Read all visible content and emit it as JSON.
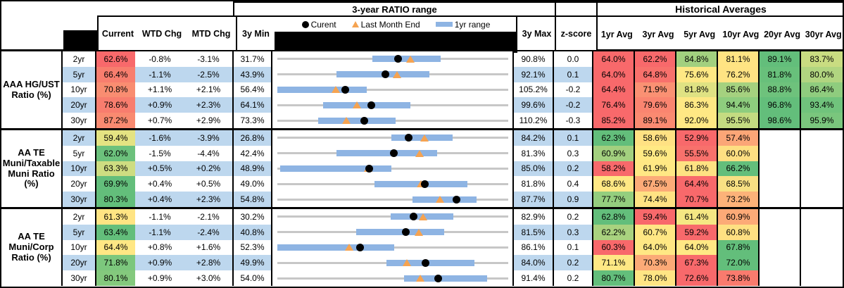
{
  "header": {
    "range_title": "3-year RATIO range",
    "hist_title": "Historical Averages",
    "legend": {
      "current": "Curent",
      "last_month": "Last Month End",
      "range_1yr": "1yr range"
    },
    "cols": {
      "current": "Current",
      "wtd": "WTD Chg",
      "mtd": "MTD Chg",
      "min3y": "3y Min",
      "max3y": "3y Max",
      "zscore": "z-score"
    },
    "avg_cols": [
      "1yr Avg",
      "3yr Avg",
      "5yr Avg",
      "10yr Avg",
      "20yr Avg",
      "30yr Avg"
    ]
  },
  "colors": {
    "stripe_blue": "#bdd7ee",
    "bar_blue": "#8eb4e3",
    "track_gray": "#c7c7c7",
    "triangle_orange": "#f5a351",
    "dot_black": "#000000",
    "heat_red": "#f8696b",
    "heat_yellow": "#ffeb84",
    "heat_green": "#63be7b"
  },
  "chart_data": {
    "type": "table",
    "title": "3-year RATIO range",
    "legend_entries": [
      "Current (black dot)",
      "Last Month End (orange triangle)",
      "1yr range (blue bar)"
    ],
    "note": "Each row plots Current, Last Month End and the 1yr range on a gray 3y min-max track; values in percent",
    "groups": [
      {
        "label": "AAA HG/UST Ratio (%)",
        "rows": [
          {
            "tenor": "2yr",
            "current": "62.6%",
            "cbg": "#f8696b",
            "wtd": "-0.8%",
            "mtd": "-3.1%",
            "min": "31.7%",
            "max": "90.8%",
            "z": "0.0",
            "chart": {
              "min": 31.7,
              "max": 90.8,
              "bar": [
                56.1,
                73.5
              ],
              "dot": 62.6,
              "tri": 65.7
            },
            "avgs": [
              {
                "v": "64.0%",
                "bg": "#f8696b"
              },
              {
                "v": "62.2%",
                "bg": "#f8696b"
              },
              {
                "v": "84.8%",
                "bg": "#a2d07f"
              },
              {
                "v": "81.1%",
                "bg": "#ffe483"
              },
              {
                "v": "89.1%",
                "bg": "#63be7b"
              },
              {
                "v": "83.7%",
                "bg": "#c9dc81"
              }
            ]
          },
          {
            "tenor": "5yr",
            "current": "66.4%",
            "cbg": "#f87e6e",
            "wtd": "-1.1%",
            "mtd": "-2.5%",
            "min": "43.9%",
            "max": "92.1%",
            "z": "0.1",
            "chart": {
              "min": 43.9,
              "max": 92.1,
              "bar": [
                56.2,
                75.6
              ],
              "dot": 66.4,
              "tri": 68.9
            },
            "avgs": [
              {
                "v": "64.0%",
                "bg": "#f8696b"
              },
              {
                "v": "64.8%",
                "bg": "#f8716c"
              },
              {
                "v": "75.6%",
                "bg": "#ffe884"
              },
              {
                "v": "76.2%",
                "bg": "#ffe383"
              },
              {
                "v": "81.8%",
                "bg": "#68c07b"
              },
              {
                "v": "80.0%",
                "bg": "#b1d580"
              }
            ]
          },
          {
            "tenor": "10yr",
            "current": "70.8%",
            "cbg": "#f98d71",
            "wtd": "+1.1%",
            "mtd": "+2.1%",
            "min": "56.4%",
            "max": "105.2%",
            "z": "-0.2",
            "chart": {
              "min": 56.4,
              "max": 105.2,
              "bar": [
                56.4,
                75.3
              ],
              "dot": 70.8,
              "tri": 68.7
            },
            "avgs": [
              {
                "v": "64.4%",
                "bg": "#f8696b"
              },
              {
                "v": "71.9%",
                "bg": "#fa9173"
              },
              {
                "v": "81.8%",
                "bg": "#dfe283"
              },
              {
                "v": "85.6%",
                "bg": "#a5d17f"
              },
              {
                "v": "88.8%",
                "bg": "#6ec27c"
              },
              {
                "v": "86.4%",
                "bg": "#8fcc7e"
              }
            ]
          },
          {
            "tenor": "20yr",
            "current": "78.6%",
            "cbg": "#f87d6e",
            "wtd": "+0.9%",
            "mtd": "+2.3%",
            "min": "64.1%",
            "max": "99.6%",
            "z": "-0.2",
            "chart": {
              "min": 64.1,
              "max": 99.6,
              "bar": [
                71.1,
                84.6
              ],
              "dot": 78.6,
              "tri": 76.3
            },
            "avgs": [
              {
                "v": "76.4%",
                "bg": "#f8696b"
              },
              {
                "v": "79.6%",
                "bg": "#fa8570"
              },
              {
                "v": "86.3%",
                "bg": "#ffe884"
              },
              {
                "v": "94.4%",
                "bg": "#8ecd7e"
              },
              {
                "v": "96.8%",
                "bg": "#63be7b"
              },
              {
                "v": "93.4%",
                "bg": "#70c37c"
              }
            ]
          },
          {
            "tenor": "30yr",
            "current": "87.2%",
            "cbg": "#f98a70",
            "wtd": "+0.7%",
            "mtd": "+2.9%",
            "min": "73.3%",
            "max": "110.2%",
            "z": "-0.3",
            "chart": {
              "min": 73.3,
              "max": 110.2,
              "bar": [
                79.8,
                92.2
              ],
              "dot": 87.2,
              "tri": 84.3
            },
            "avgs": [
              {
                "v": "85.2%",
                "bg": "#f8696b"
              },
              {
                "v": "89.1%",
                "bg": "#fa8a71"
              },
              {
                "v": "92.0%",
                "bg": "#ffe884"
              },
              {
                "v": "95.5%",
                "bg": "#c4db81"
              },
              {
                "v": "98.6%",
                "bg": "#63be7b"
              },
              {
                "v": "95.9%",
                "bg": "#7ac67d"
              }
            ]
          }
        ]
      },
      {
        "label": "AA TE Muni/Taxable Muni Ratio (%)",
        "rows": [
          {
            "tenor": "2yr",
            "current": "59.4%",
            "cbg": "#e4e382",
            "wtd": "-1.6%",
            "mtd": "-3.9%",
            "min": "26.8%",
            "max": "84.2%",
            "z": "0.1",
            "chart": {
              "min": 26.8,
              "max": 84.2,
              "bar": [
                55.1,
                70.3
              ],
              "dot": 59.4,
              "tri": 63.3
            },
            "avgs": [
              {
                "v": "62.3%",
                "bg": "#63be7b"
              },
              {
                "v": "58.6%",
                "bg": "#ffe183"
              },
              {
                "v": "52.9%",
                "bg": "#f8696b"
              },
              {
                "v": "57.4%",
                "bg": "#fba677"
              },
              null,
              null
            ]
          },
          {
            "tenor": "5yr",
            "current": "62.0%",
            "cbg": "#6cc17c",
            "wtd": "-1.5%",
            "mtd": "-4.4%",
            "min": "42.4%",
            "max": "81.3%",
            "z": "0.3",
            "chart": {
              "min": 42.4,
              "max": 81.3,
              "bar": [
                52.4,
                69.3
              ],
              "dot": 62.0,
              "tri": 66.4
            },
            "avgs": [
              {
                "v": "60.9%",
                "bg": "#a3d07f"
              },
              {
                "v": "59.6%",
                "bg": "#ffe984"
              },
              {
                "v": "55.5%",
                "bg": "#f8716c"
              },
              {
                "v": "60.0%",
                "bg": "#fedf82"
              },
              null,
              null
            ]
          },
          {
            "tenor": "10yr",
            "current": "63.3%",
            "cbg": "#cedd81",
            "wtd": "+0.5%",
            "mtd": "+0.2%",
            "min": "48.9%",
            "max": "85.0%",
            "z": "0.2",
            "chart": {
              "min": 48.9,
              "max": 85.0,
              "bar": [
                49.3,
                66.7
              ],
              "dot": 63.3,
              "tri": 63.1
            },
            "avgs": [
              {
                "v": "58.2%",
                "bg": "#f8696b"
              },
              {
                "v": "61.9%",
                "bg": "#ffe884"
              },
              {
                "v": "61.8%",
                "bg": "#fee282"
              },
              {
                "v": "66.2%",
                "bg": "#63be7b"
              },
              null,
              null
            ]
          },
          {
            "tenor": "20yr",
            "current": "69.9%",
            "cbg": "#63be7b",
            "wtd": "+0.4%",
            "mtd": "+0.5%",
            "min": "49.0%",
            "max": "81.8%",
            "z": "0.4",
            "chart": {
              "min": 49.0,
              "max": 81.8,
              "bar": [
                62.8,
                76.0
              ],
              "dot": 69.9,
              "tri": 69.4
            },
            "avgs": [
              {
                "v": "68.6%",
                "bg": "#ffe884"
              },
              {
                "v": "67.5%",
                "bg": "#fcab78"
              },
              {
                "v": "64.4%",
                "bg": "#f8696b"
              },
              {
                "v": "68.5%",
                "bg": "#f8e083"
              },
              null,
              null
            ]
          },
          {
            "tenor": "30yr",
            "current": "80.3%",
            "cbg": "#63be7b",
            "wtd": "+0.4%",
            "mtd": "+2.3%",
            "min": "54.8%",
            "max": "87.7%",
            "z": "0.9",
            "chart": {
              "min": 54.8,
              "max": 87.7,
              "bar": [
                74.1,
                83.2
              ],
              "dot": 80.3,
              "tri": 78.0
            },
            "avgs": [
              {
                "v": "77.7%",
                "bg": "#94ce7e"
              },
              {
                "v": "74.4%",
                "bg": "#ffe283"
              },
              {
                "v": "70.7%",
                "bg": "#f8696b"
              },
              {
                "v": "73.2%",
                "bg": "#fcb279"
              },
              null,
              null
            ]
          }
        ]
      },
      {
        "label": "AA TE Muni/Corp Ratio (%)",
        "rows": [
          {
            "tenor": "2yr",
            "current": "61.3%",
            "cbg": "#ffe483",
            "wtd": "-1.1%",
            "mtd": "-2.1%",
            "min": "30.2%",
            "max": "82.9%",
            "z": "0.2",
            "chart": {
              "min": 30.2,
              "max": 82.9,
              "bar": [
                56.1,
                70.4
              ],
              "dot": 61.3,
              "tri": 63.4
            },
            "avgs": [
              {
                "v": "62.8%",
                "bg": "#63be7b"
              },
              {
                "v": "59.4%",
                "bg": "#f8696b"
              },
              {
                "v": "61.4%",
                "bg": "#f5e783"
              },
              {
                "v": "60.9%",
                "bg": "#fcaa77"
              },
              null,
              null
            ]
          },
          {
            "tenor": "5yr",
            "current": "63.4%",
            "cbg": "#63be7b",
            "wtd": "-1.1%",
            "mtd": "-2.4%",
            "min": "40.8%",
            "max": "81.5%",
            "z": "0.3",
            "chart": {
              "min": 40.8,
              "max": 81.5,
              "bar": [
                54.7,
                70.2
              ],
              "dot": 63.4,
              "tri": 65.8
            },
            "avgs": [
              {
                "v": "62.2%",
                "bg": "#a9d27f"
              },
              {
                "v": "60.7%",
                "bg": "#ffe784"
              },
              {
                "v": "59.2%",
                "bg": "#f8696b"
              },
              {
                "v": "60.8%",
                "bg": "#fee082"
              },
              null,
              null
            ]
          },
          {
            "tenor": "10yr",
            "current": "64.4%",
            "cbg": "#ffe784",
            "wtd": "+0.8%",
            "mtd": "+1.6%",
            "min": "52.3%",
            "max": "86.1%",
            "z": "0.1",
            "chart": {
              "min": 52.3,
              "max": 86.1,
              "bar": [
                52.3,
                69.4
              ],
              "dot": 64.4,
              "tri": 62.8
            },
            "avgs": [
              {
                "v": "60.3%",
                "bg": "#f8696b"
              },
              {
                "v": "64.0%",
                "bg": "#ffe884"
              },
              {
                "v": "64.0%",
                "bg": "#ffe884"
              },
              {
                "v": "67.8%",
                "bg": "#63be7b"
              },
              null,
              null
            ]
          },
          {
            "tenor": "20yr",
            "current": "71.8%",
            "cbg": "#7cc77d",
            "wtd": "+0.9%",
            "mtd": "+2.8%",
            "min": "49.9%",
            "max": "84.0%",
            "z": "0.2",
            "chart": {
              "min": 49.9,
              "max": 84.0,
              "bar": [
                66.0,
                79.0
              ],
              "dot": 71.8,
              "tri": 69.0
            },
            "avgs": [
              {
                "v": "71.1%",
                "bg": "#ffe884"
              },
              {
                "v": "70.3%",
                "bg": "#fbaa77"
              },
              {
                "v": "67.3%",
                "bg": "#f8696b"
              },
              {
                "v": "72.0%",
                "bg": "#63be7b"
              },
              null,
              null
            ]
          },
          {
            "tenor": "30yr",
            "current": "80.1%",
            "cbg": "#84c97d",
            "wtd": "+0.9%",
            "mtd": "+3.0%",
            "min": "54.0%",
            "max": "91.4%",
            "z": "0.2",
            "chart": {
              "min": 54.0,
              "max": 91.4,
              "bar": [
                74.5,
                88.0
              ],
              "dot": 80.1,
              "tri": 77.1
            },
            "avgs": [
              {
                "v": "80.7%",
                "bg": "#63be7b"
              },
              {
                "v": "78.0%",
                "bg": "#ffe584"
              },
              {
                "v": "72.6%",
                "bg": "#f8696b"
              },
              {
                "v": "73.8%",
                "bg": "#f97b6e"
              },
              null,
              null
            ]
          }
        ]
      }
    ]
  }
}
